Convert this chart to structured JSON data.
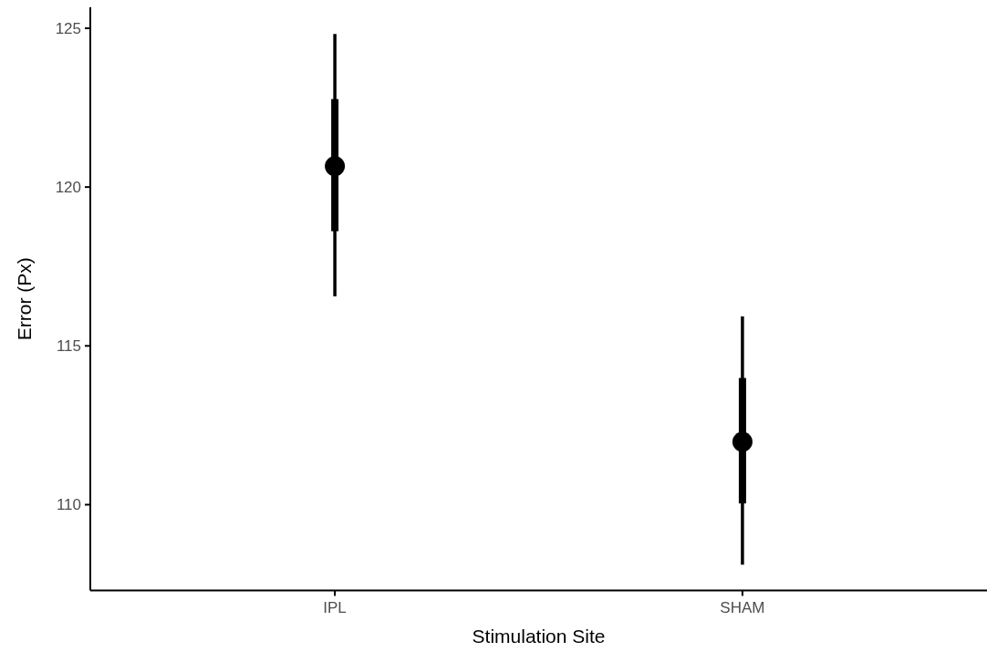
{
  "chart_data": {
    "type": "box",
    "xlabel": "Stimulation Site",
    "ylabel": "Error (Px)",
    "categories": [
      "IPL",
      "SHAM"
    ],
    "ylim": [
      107.3,
      125.66
    ],
    "yticks": [
      110,
      115,
      120,
      125
    ],
    "color": "#000000",
    "boxes": [
      {
        "low": 116.56,
        "q1": 118.61,
        "median": 120.66,
        "q3": 122.77,
        "high": 124.82
      },
      {
        "low": 108.11,
        "q1": 110.04,
        "median": 111.98,
        "q3": 113.99,
        "high": 115.93
      }
    ]
  }
}
